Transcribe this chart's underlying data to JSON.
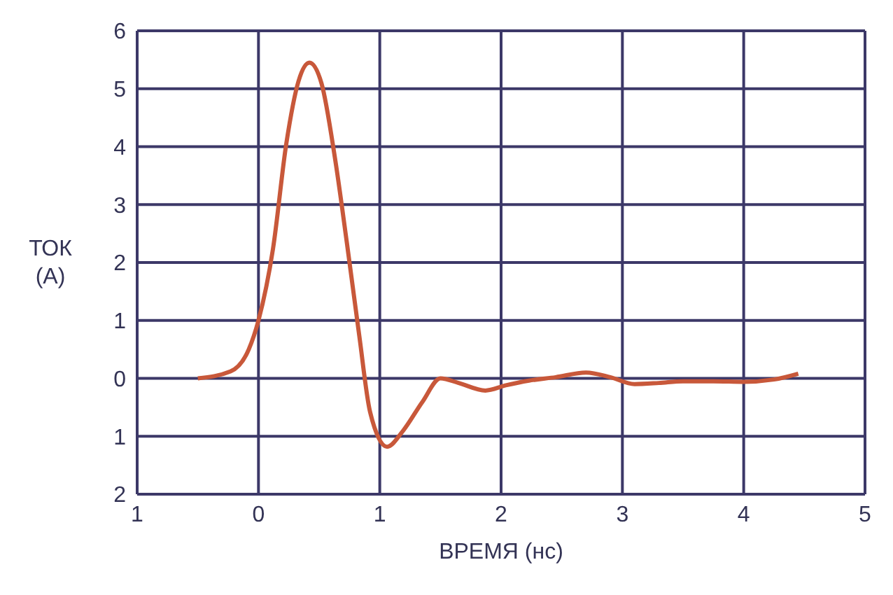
{
  "chart_data": {
    "type": "line",
    "xlabel": "ВРЕМЯ (нс)",
    "ylabel": "ТОК (А)",
    "x": [
      -0.5,
      -0.23,
      -0.08,
      0,
      0.12,
      0.23,
      0.33,
      0.42,
      0.52,
      0.63,
      0.73,
      0.83,
      0.92,
      1.06,
      1.19,
      1.35,
      1.5,
      1.65,
      1.87,
      2.04,
      2.23,
      2.45,
      2.7,
      2.9,
      3.1,
      3.3,
      3.5,
      3.75,
      4.0,
      4.25,
      4.45
    ],
    "series": [
      {
        "color": "#c8583a",
        "values": [
          0,
          0.12,
          0.5,
          1.0,
          2.24,
          4.06,
          5.13,
          5.45,
          5.09,
          3.81,
          2.32,
          0.75,
          -0.58,
          -1.18,
          -0.91,
          -0.41,
          0,
          -0.08,
          -0.21,
          -0.12,
          -0.04,
          0.02,
          0.1,
          0.02,
          -0.1,
          -0.08,
          -0.05,
          -0.05,
          -0.06,
          -0.02,
          0.08
        ]
      }
    ],
    "xlim": [
      -1,
      5
    ],
    "xticks": [
      {
        "value": -1,
        "label": "1"
      },
      0,
      1,
      2,
      3,
      4,
      5
    ],
    "ylim": [
      -2,
      6
    ],
    "yticks": [
      {
        "value": -2,
        "label": "2"
      },
      {
        "value": -1,
        "label": "1"
      },
      0,
      1,
      2,
      3,
      4,
      5,
      6
    ],
    "grid": true,
    "marker": "none",
    "line_style": "solid"
  }
}
